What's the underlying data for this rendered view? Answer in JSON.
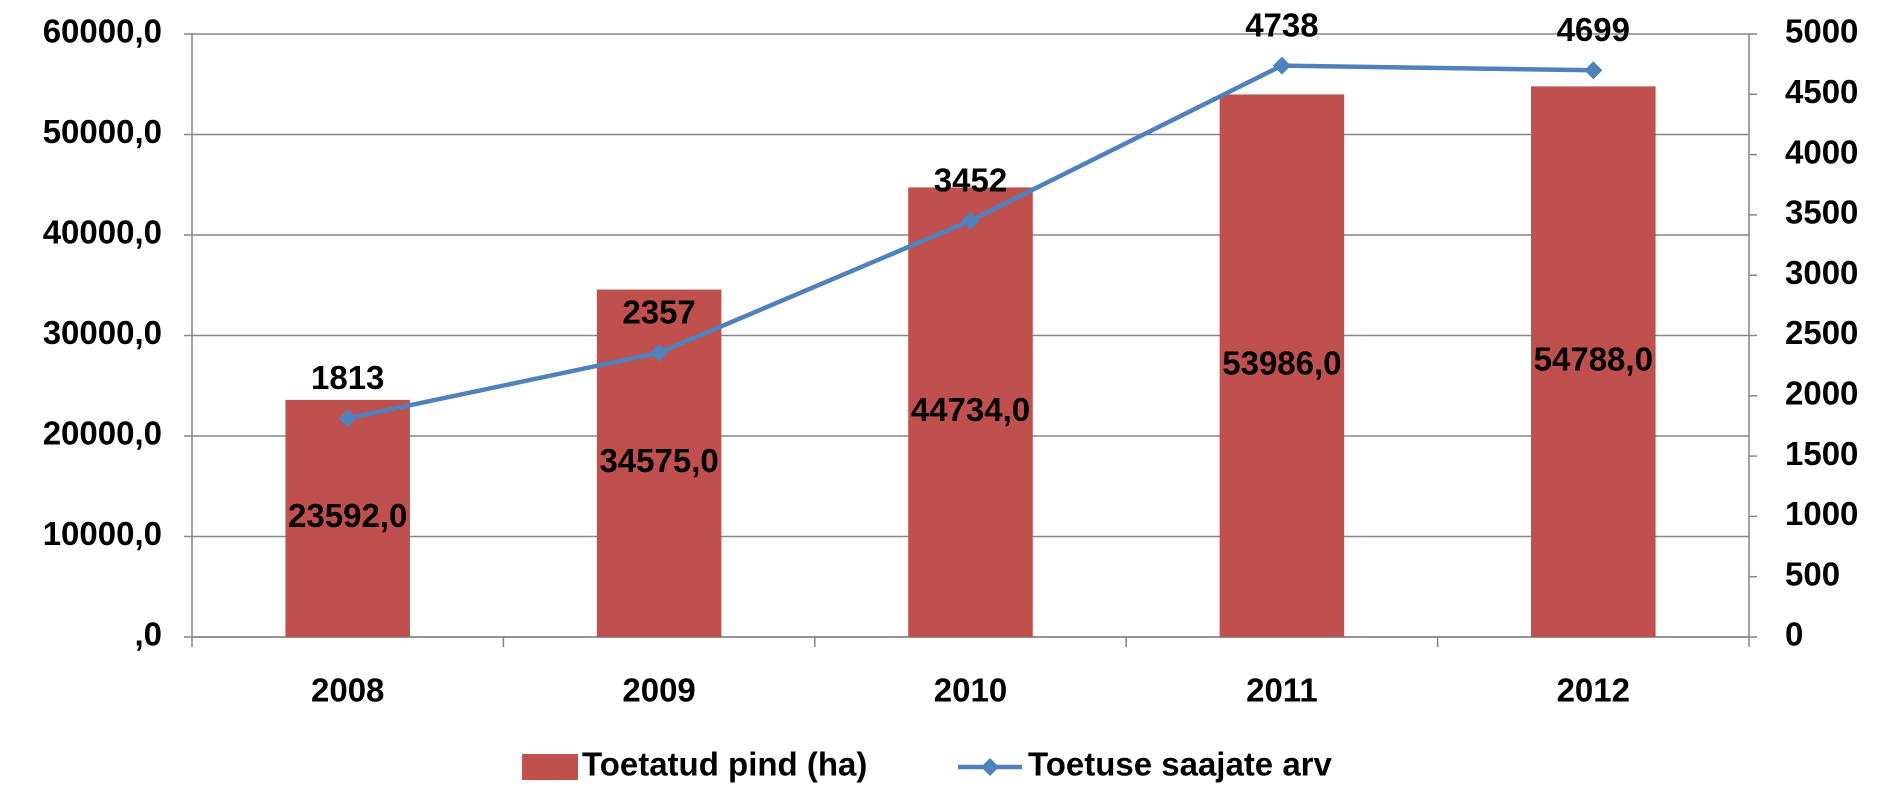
{
  "chart_data": {
    "type": "bar_line",
    "categories": [
      "2008",
      "2009",
      "2010",
      "2011",
      "2012"
    ],
    "series": [
      {
        "name": "Toetatud pind (ha)",
        "type": "bar",
        "color": "#c0504d",
        "values": [
          23592,
          34575,
          44734,
          53986,
          54788
        ],
        "value_labels": [
          "23592,0",
          "34575,0",
          "44734,0",
          "53986,0",
          "54788,0"
        ]
      },
      {
        "name": "Toetuse saajate arv",
        "type": "line",
        "axis": "y2",
        "color": "#4f81bd",
        "values": [
          1813,
          2357,
          3452,
          4738,
          4699
        ]
      }
    ],
    "ylim": [
      0,
      60000
    ],
    "yticks": [
      {
        "value": 0,
        "label": ",0"
      },
      {
        "value": 10000,
        "label": "10000,0"
      },
      {
        "value": 20000,
        "label": "20000,0"
      },
      {
        "value": 30000,
        "label": "30000,0"
      },
      {
        "value": 40000,
        "label": "40000,0"
      },
      {
        "value": 50000,
        "label": "50000,0"
      },
      {
        "value": 60000,
        "label": "60000,0"
      }
    ],
    "y2lim": [
      0,
      5000
    ],
    "y2ticks": [
      0,
      500,
      1000,
      1500,
      2000,
      2500,
      3000,
      3500,
      4000,
      4500,
      5000
    ],
    "grid": true,
    "legend": "bottom"
  }
}
